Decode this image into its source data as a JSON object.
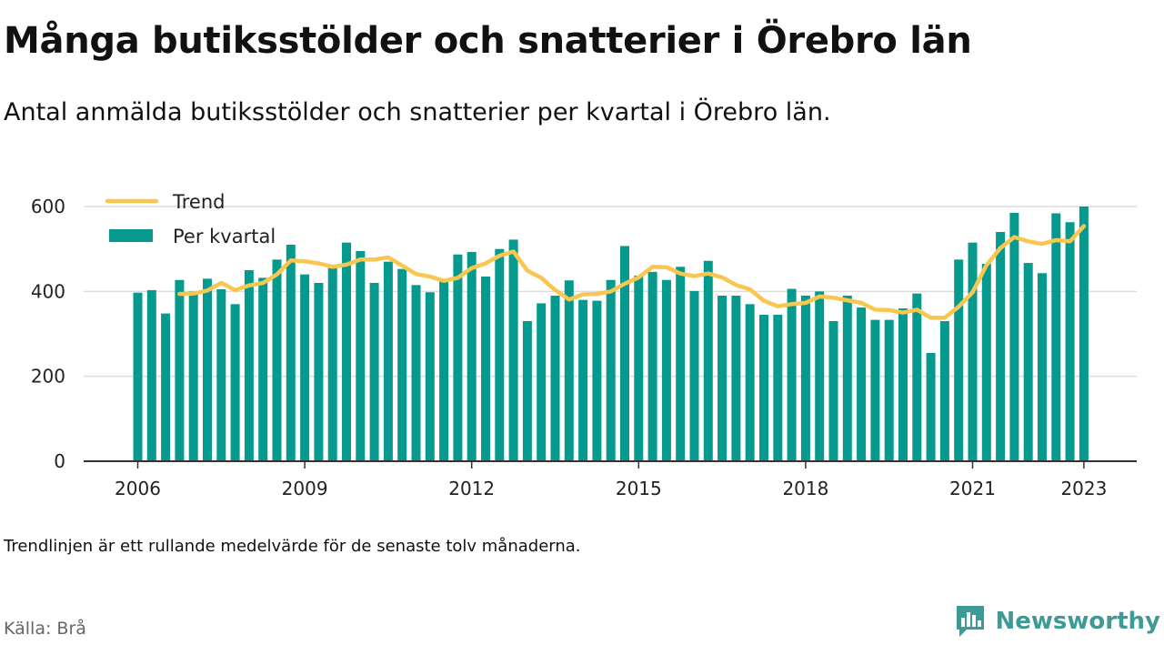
{
  "title": "Många butiksstölder och snatterier i Örebro län",
  "subtitle": "Antal anmälda butiksstölder och snatterier per kvartal i Örebro län.",
  "note": "Trendlinjen är ett rullande medelvärde för de senaste tolv månaderna.",
  "source": "Källa: Brå",
  "brand": {
    "name": "Newsworthy",
    "icon": "newsworthy-logo-icon",
    "color": "#3e9a96"
  },
  "colors": {
    "bar": "#069a8e",
    "trend": "#f9c74f",
    "grid": "#dddddd",
    "axis": "#333333"
  },
  "chart_data": {
    "type": "bar",
    "title": "",
    "xlabel": "",
    "ylabel": "",
    "ylim": [
      0,
      600
    ],
    "yticks": [
      0,
      200,
      400,
      600
    ],
    "xticks": [
      "2006",
      "2009",
      "2012",
      "2015",
      "2018",
      "2021",
      "2023"
    ],
    "grid": true,
    "legend_position": "top-left",
    "categories": [
      "2006 Q1",
      "2006 Q2",
      "2006 Q3",
      "2006 Q4",
      "2007 Q1",
      "2007 Q2",
      "2007 Q3",
      "2007 Q4",
      "2008 Q1",
      "2008 Q2",
      "2008 Q3",
      "2008 Q4",
      "2009 Q1",
      "2009 Q2",
      "2009 Q3",
      "2009 Q4",
      "2010 Q1",
      "2010 Q2",
      "2010 Q3",
      "2010 Q4",
      "2011 Q1",
      "2011 Q2",
      "2011 Q3",
      "2011 Q4",
      "2012 Q1",
      "2012 Q2",
      "2012 Q3",
      "2012 Q4",
      "2013 Q1",
      "2013 Q2",
      "2013 Q3",
      "2013 Q4",
      "2014 Q1",
      "2014 Q2",
      "2014 Q3",
      "2014 Q4",
      "2015 Q1",
      "2015 Q2",
      "2015 Q3",
      "2015 Q4",
      "2016 Q1",
      "2016 Q2",
      "2016 Q3",
      "2016 Q4",
      "2017 Q1",
      "2017 Q2",
      "2017 Q3",
      "2017 Q4",
      "2018 Q1",
      "2018 Q2",
      "2018 Q3",
      "2018 Q4",
      "2019 Q1",
      "2019 Q2",
      "2019 Q3",
      "2019 Q4",
      "2020 Q1",
      "2020 Q2",
      "2020 Q3",
      "2020 Q4",
      "2021 Q1",
      "2021 Q2",
      "2021 Q3",
      "2021 Q4",
      "2022 Q1",
      "2022 Q2",
      "2022 Q3",
      "2022 Q4",
      "2023 Q1"
    ],
    "series": [
      {
        "name": "Per kvartal",
        "type": "bar",
        "values": [
          397,
          403,
          348,
          427,
          400,
          430,
          405,
          370,
          450,
          432,
          475,
          510,
          440,
          420,
          455,
          515,
          495,
          420,
          470,
          453,
          415,
          398,
          425,
          487,
          493,
          435,
          500,
          522,
          330,
          372,
          390,
          426,
          380,
          378,
          427,
          507,
          437,
          446,
          427,
          458,
          401,
          472,
          390,
          390,
          370,
          345,
          345,
          406,
          390,
          400,
          330,
          390,
          362,
          333,
          333,
          360,
          395,
          255,
          330,
          475,
          515,
          465,
          540,
          585,
          467,
          443,
          584,
          563,
          600
        ]
      },
      {
        "name": "Trend",
        "type": "line",
        "values": [
          null,
          null,
          null,
          394,
          395,
          402,
          420,
          403,
          414,
          420,
          440,
          473,
          471,
          466,
          458,
          463,
          475,
          475,
          480,
          461,
          441,
          435,
          425,
          432,
          455,
          466,
          484,
          494,
          449,
          432,
          403,
          381,
          393,
          394,
          400,
          418,
          433,
          458,
          457,
          442,
          436,
          442,
          433,
          415,
          405,
          378,
          365,
          370,
          373,
          388,
          385,
          379,
          373,
          357,
          356,
          350,
          357,
          338,
          338,
          364,
          398,
          462,
          502,
          528,
          518,
          512,
          521,
          518,
          554
        ]
      }
    ]
  }
}
